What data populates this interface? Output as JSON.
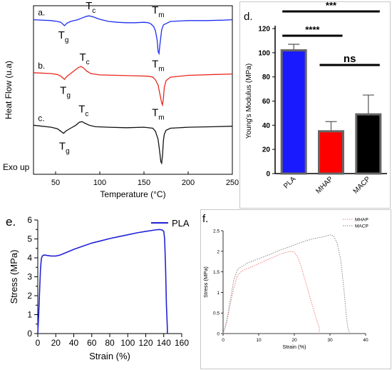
{
  "chart_data": [
    {
      "panel": "",
      "type": "line",
      "xlabel": "Temperature (°C)",
      "ylabel": "Heat Flow (u.a)",
      "corner_label": "Exo up",
      "xlim": [
        25,
        250
      ],
      "xticks": [
        50,
        100,
        150,
        200,
        250
      ],
      "colors": {
        "a": "#1f2ff0",
        "b": "#e8281e",
        "c": "#111111"
      },
      "series": [
        {
          "label": "a.",
          "x": [
            25,
            45,
            52,
            56,
            60,
            63,
            67,
            75,
            80,
            85,
            88,
            92,
            100,
            110,
            120,
            130,
            140,
            150,
            155,
            158,
            161,
            163,
            165,
            166,
            167,
            168,
            170,
            172,
            180,
            200,
            220,
            240,
            250
          ],
          "y": [
            0.84,
            0.82,
            0.8,
            0.78,
            0.7,
            0.76,
            0.8,
            0.84,
            0.88,
            0.92,
            0.93,
            0.91,
            0.85,
            0.8,
            0.78,
            0.77,
            0.77,
            0.78,
            0.77,
            0.74,
            0.68,
            0.58,
            0.35,
            0.1,
            0.05,
            0.25,
            0.6,
            0.72,
            0.8,
            0.82,
            0.82,
            0.83,
            0.84
          ],
          "annotations": [
            {
              "base": "T",
              "sub": "g",
              "x": 57,
              "y": 0.4
            },
            {
              "base": "T",
              "sub": "c",
              "x": 88,
              "y": 1.08
            },
            {
              "base": "T",
              "sub": "m",
              "x": 163,
              "y": 0.98
            }
          ]
        },
        {
          "label": "b.",
          "x": [
            25,
            45,
            52,
            56,
            60,
            63,
            67,
            72,
            76,
            79,
            82,
            85,
            90,
            100,
            120,
            140,
            155,
            160,
            163,
            166,
            168,
            170,
            171,
            172,
            173,
            175,
            180,
            200,
            230,
            250
          ],
          "y": [
            0.78,
            0.76,
            0.74,
            0.7,
            0.63,
            0.7,
            0.76,
            0.84,
            0.9,
            0.92,
            0.88,
            0.82,
            0.76,
            0.73,
            0.72,
            0.71,
            0.7,
            0.68,
            0.62,
            0.5,
            0.3,
            0.1,
            0.05,
            0.2,
            0.45,
            0.6,
            0.68,
            0.72,
            0.74,
            0.75
          ],
          "annotations": [
            {
              "base": "T",
              "sub": "g",
              "x": 59,
              "y": 0.3
            },
            {
              "base": "T",
              "sub": "c",
              "x": 81,
              "y": 1.05
            },
            {
              "base": "T",
              "sub": "m",
              "x": 163,
              "y": 0.9
            }
          ]
        },
        {
          "label": "c.",
          "x": [
            25,
            45,
            52,
            56,
            59,
            62,
            67,
            73,
            77,
            80,
            83,
            88,
            95,
            110,
            130,
            150,
            160,
            163,
            166,
            168,
            169,
            170,
            171,
            172,
            173,
            175,
            180,
            200,
            230,
            250
          ],
          "y": [
            0.8,
            0.76,
            0.73,
            0.68,
            0.64,
            0.69,
            0.74,
            0.8,
            0.86,
            0.87,
            0.84,
            0.8,
            0.77,
            0.76,
            0.75,
            0.76,
            0.74,
            0.68,
            0.52,
            0.25,
            0.08,
            0.05,
            0.2,
            0.5,
            0.62,
            0.7,
            0.74,
            0.76,
            0.77,
            0.78
          ],
          "annotations": [
            {
              "base": "T",
              "sub": "g",
              "x": 58,
              "y": 0.32
            },
            {
              "base": "T",
              "sub": "c",
              "x": 80,
              "y": 1.05
            },
            {
              "base": "T",
              "sub": "m",
              "x": 163,
              "y": 0.98
            }
          ]
        }
      ]
    },
    {
      "panel": "d.",
      "type": "bar",
      "ylabel": "Young's Modulus (MPa)",
      "ylim": [
        0,
        120
      ],
      "yticks": [
        0,
        20,
        40,
        60,
        80,
        100,
        120
      ],
      "categories": [
        "PLA",
        "MHAP",
        "MACP"
      ],
      "values": [
        102,
        35,
        49
      ],
      "errors": [
        5,
        8,
        16
      ],
      "colors": [
        "#1a1aff",
        "#ff0000",
        "#000000"
      ],
      "significance": [
        {
          "from": "PLA",
          "to": "MACP",
          "text": "***"
        },
        {
          "from": "PLA",
          "to": "MHAP",
          "text": "****"
        },
        {
          "from": "MHAP",
          "to": "MACP",
          "text": "ns"
        }
      ]
    },
    {
      "panel": "e.",
      "type": "line",
      "xlabel": "Strain (%)",
      "ylabel": "Stress (MPa)",
      "xlim": [
        0,
        160
      ],
      "ylim": [
        0,
        6
      ],
      "xticks": [
        0,
        20,
        40,
        60,
        80,
        100,
        120,
        140,
        160
      ],
      "yticks": [
        0,
        0.5,
        1,
        1.5,
        2,
        2.5,
        3,
        3.5,
        4,
        4.5,
        5,
        5.5,
        6
      ],
      "legend": "top-right",
      "series": [
        {
          "name": "PLA",
          "color": "#2323d6",
          "x": [
            0,
            1,
            2,
            3,
            4,
            5,
            7,
            10,
            15,
            20,
            25,
            30,
            40,
            50,
            60,
            70,
            80,
            90,
            100,
            110,
            120,
            130,
            135,
            138,
            140,
            141,
            142,
            143,
            144,
            144
          ],
          "y": [
            0,
            1.0,
            2.2,
            3.4,
            3.95,
            4.1,
            4.15,
            4.13,
            4.1,
            4.1,
            4.15,
            4.25,
            4.45,
            4.62,
            4.78,
            4.9,
            5.02,
            5.12,
            5.22,
            5.32,
            5.4,
            5.47,
            5.5,
            5.48,
            5.4,
            5.0,
            3.5,
            1.5,
            0.3,
            0
          ]
        }
      ]
    },
    {
      "panel": "f.",
      "type": "line",
      "xlabel": "Strain (%)",
      "ylabel": "Stress (MPa)",
      "xlim": [
        0,
        40
      ],
      "ylim": [
        0,
        2.5
      ],
      "xticks": [
        0,
        10,
        20,
        30,
        40
      ],
      "yticks": [
        0,
        0.5,
        1,
        1.5,
        2,
        2.5
      ],
      "legend": "top-right",
      "series": [
        {
          "name": "MHAP",
          "color": "#f08080",
          "x": [
            0,
            1,
            2,
            3,
            4,
            5,
            6,
            8,
            10,
            12,
            14,
            16,
            18,
            19,
            20,
            21,
            22,
            23,
            24,
            25,
            26,
            27,
            27
          ],
          "y": [
            0,
            0.25,
            0.7,
            1.1,
            1.4,
            1.5,
            1.55,
            1.62,
            1.7,
            1.78,
            1.85,
            1.93,
            1.98,
            2.0,
            1.98,
            1.85,
            1.6,
            1.3,
            1.0,
            0.7,
            0.4,
            0.15,
            0
          ]
        },
        {
          "name": "MACP",
          "color": "#8a8a8a",
          "x": [
            0,
            1,
            2,
            3,
            4,
            5,
            7,
            10,
            13,
            16,
            19,
            22,
            25,
            28,
            30,
            31,
            32,
            33,
            34,
            34.5,
            35,
            35.5
          ],
          "y": [
            0,
            0.3,
            0.8,
            1.3,
            1.55,
            1.62,
            1.72,
            1.82,
            1.92,
            2.03,
            2.12,
            2.22,
            2.3,
            2.35,
            2.4,
            2.38,
            2.2,
            1.8,
            1.0,
            0.5,
            0.15,
            0
          ]
        }
      ]
    }
  ]
}
